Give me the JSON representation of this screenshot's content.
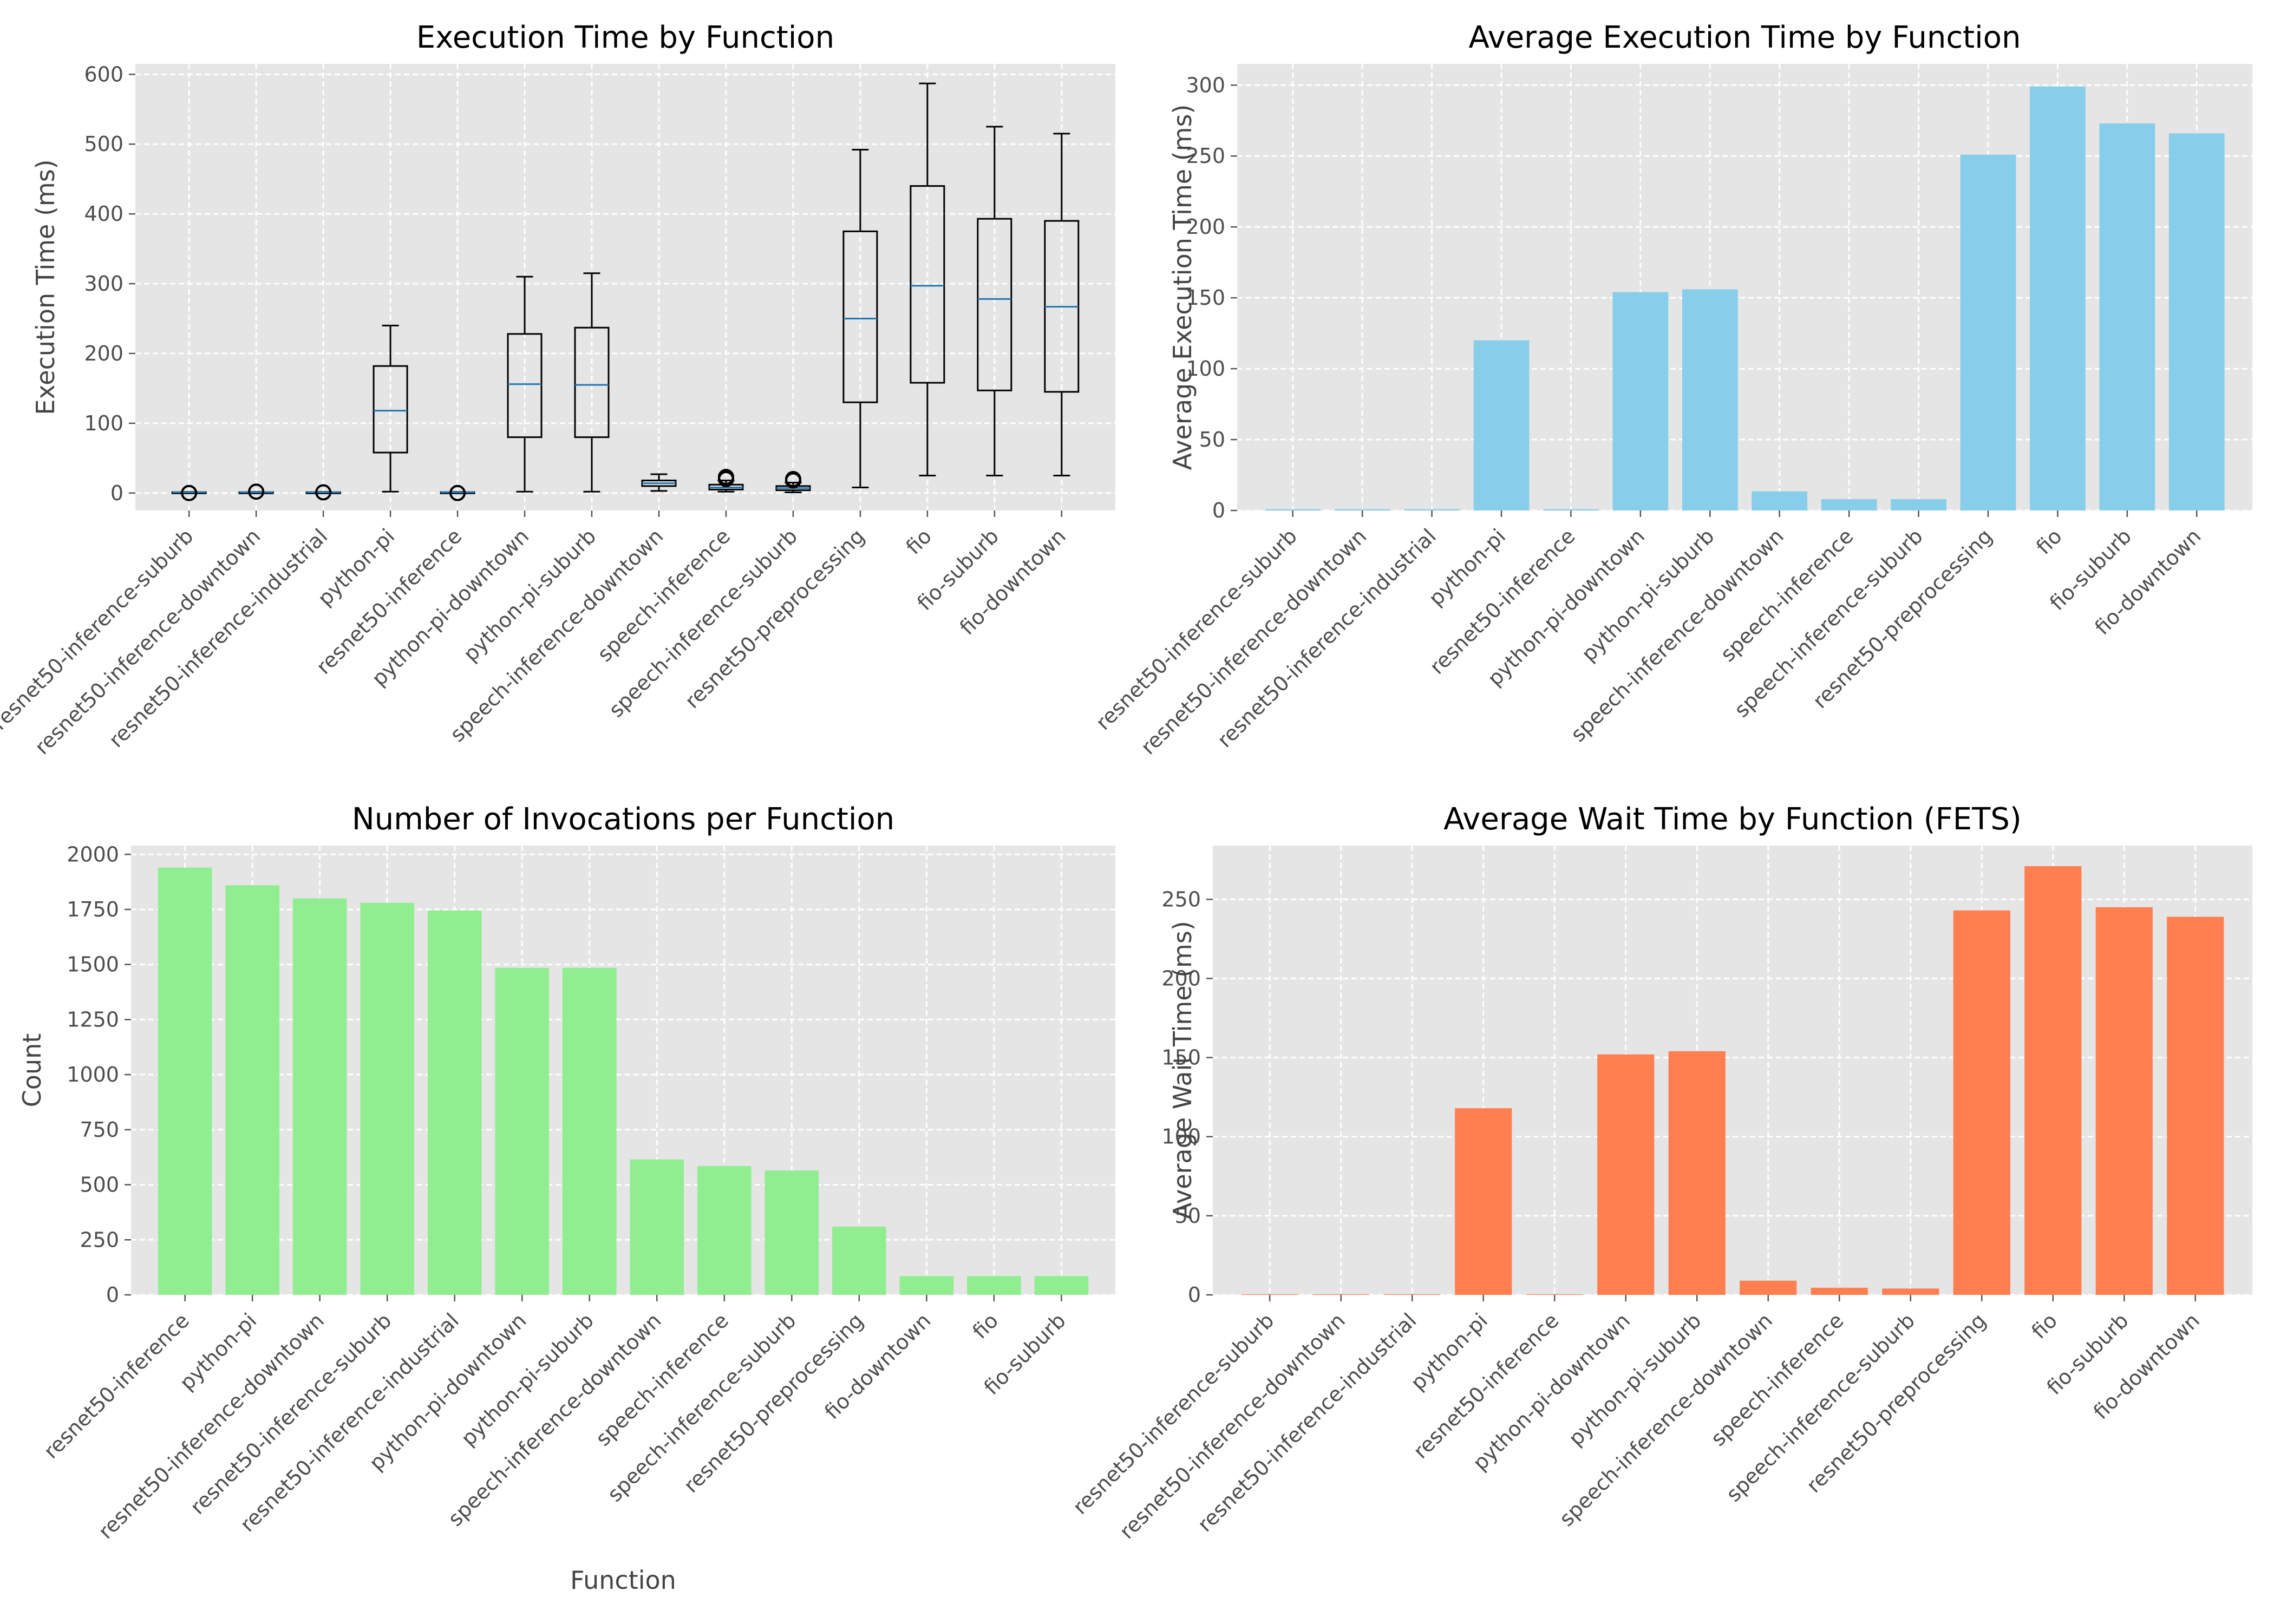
{
  "chart_data": [
    {
      "type": "box",
      "title": "Execution Time by Function",
      "xlabel": "",
      "ylabel": "Execution Time (ms)",
      "ylim": [
        -25,
        615
      ],
      "yticks": [
        0,
        100,
        200,
        300,
        400,
        500,
        600
      ],
      "grid": true,
      "categories": [
        "resnet50-inference-suburb",
        "resnet50-inference-downtown",
        "resnet50-inference-industrial",
        "python-pi",
        "resnet50-inference",
        "python-pi-downtown",
        "python-pi-suburb",
        "speech-inference-downtown",
        "speech-inference",
        "speech-inference-suburb",
        "resnet50-preprocessing",
        "fio",
        "fio-suburb",
        "fio-downtown"
      ],
      "boxes": [
        {
          "min": 0.5,
          "q1": 0.8,
          "median": 1,
          "q3": 1.2,
          "max": 1.5,
          "outliers": [
            0
          ]
        },
        {
          "min": 0.5,
          "q1": 0.8,
          "median": 1,
          "q3": 1.2,
          "max": 1.5,
          "outliers": [
            2
          ]
        },
        {
          "min": 0.5,
          "q1": 0.8,
          "median": 1,
          "q3": 1.2,
          "max": 1.5,
          "outliers": [
            1
          ]
        },
        {
          "min": 2,
          "q1": 58,
          "median": 118,
          "q3": 182,
          "max": 240,
          "outliers": []
        },
        {
          "min": 0.5,
          "q1": 0.8,
          "median": 1,
          "q3": 1.2,
          "max": 1.5,
          "outliers": [
            0
          ]
        },
        {
          "min": 2,
          "q1": 80,
          "median": 156,
          "q3": 228,
          "max": 310,
          "outliers": []
        },
        {
          "min": 2,
          "q1": 80,
          "median": 155,
          "q3": 237,
          "max": 315,
          "outliers": []
        },
        {
          "min": 3,
          "q1": 10,
          "median": 14,
          "q3": 18,
          "max": 27,
          "outliers": []
        },
        {
          "min": 2,
          "q1": 5,
          "median": 8,
          "q3": 12,
          "max": 18,
          "outliers": [
            20,
            23
          ]
        },
        {
          "min": 1,
          "q1": 4,
          "median": 7,
          "q3": 10,
          "max": 15,
          "outliers": [
            18,
            20
          ]
        },
        {
          "min": 8,
          "q1": 130,
          "median": 250,
          "q3": 375,
          "max": 492,
          "outliers": []
        },
        {
          "min": 25,
          "q1": 158,
          "median": 297,
          "q3": 440,
          "max": 587,
          "outliers": []
        },
        {
          "min": 25,
          "q1": 147,
          "median": 278,
          "q3": 393,
          "max": 525,
          "outliers": []
        },
        {
          "min": 25,
          "q1": 145,
          "median": 267,
          "q3": 390,
          "max": 515,
          "outliers": []
        }
      ]
    },
    {
      "type": "bar",
      "title": "Average Execution Time by Function",
      "xlabel": "",
      "ylabel": "Average Execution Time (ms)",
      "ylim": [
        0,
        315
      ],
      "yticks": [
        0,
        50,
        100,
        150,
        200,
        250,
        300
      ],
      "grid": true,
      "color": "#87CEEB",
      "categories": [
        "resnet50-inference-suburb",
        "resnet50-inference-downtown",
        "resnet50-inference-industrial",
        "python-pi",
        "resnet50-inference",
        "python-pi-downtown",
        "python-pi-suburb",
        "speech-inference-downtown",
        "speech-inference",
        "speech-inference-suburb",
        "resnet50-preprocessing",
        "fio",
        "fio-suburb",
        "fio-downtown"
      ],
      "values": [
        0.9,
        0.9,
        0.9,
        120,
        0.9,
        154,
        156,
        13.5,
        8,
        8,
        251,
        299,
        273,
        266
      ]
    },
    {
      "type": "bar",
      "title": "Number of Invocations per Function",
      "xlabel": "Function",
      "ylabel": "Count",
      "ylim": [
        0,
        2040
      ],
      "yticks": [
        0,
        250,
        500,
        750,
        1000,
        1250,
        1500,
        1750,
        2000
      ],
      "grid": true,
      "color": "#90EE90",
      "categories": [
        "resnet50-inference",
        "python-pi",
        "resnet50-inference-downtown",
        "resnet50-inference-suburb",
        "resnet50-inference-industrial",
        "python-pi-downtown",
        "python-pi-suburb",
        "speech-inference-downtown",
        "speech-inference",
        "speech-inference-suburb",
        "resnet50-preprocessing",
        "fio-downtown",
        "fio",
        "fio-suburb"
      ],
      "values": [
        1940,
        1860,
        1800,
        1780,
        1745,
        1485,
        1485,
        615,
        585,
        565,
        310,
        85,
        85,
        85
      ]
    },
    {
      "type": "bar",
      "title": "Average Wait Time by Function (FETS)",
      "xlabel": "",
      "ylabel": "Average Wait Time (ms)",
      "ylim": [
        0,
        284
      ],
      "yticks": [
        0,
        50,
        100,
        150,
        200,
        250
      ],
      "grid": true,
      "color": "#FF7F50",
      "categories": [
        "resnet50-inference-suburb",
        "resnet50-inference-downtown",
        "resnet50-inference-industrial",
        "python-pi",
        "resnet50-inference",
        "python-pi-downtown",
        "python-pi-suburb",
        "speech-inference-downtown",
        "speech-inference",
        "speech-inference-suburb",
        "resnet50-preprocessing",
        "fio",
        "fio-suburb",
        "fio-downtown"
      ],
      "values": [
        0.4,
        0.4,
        0.4,
        118,
        0.4,
        152,
        154,
        9,
        4.5,
        4,
        243,
        271,
        245,
        239
      ]
    }
  ]
}
